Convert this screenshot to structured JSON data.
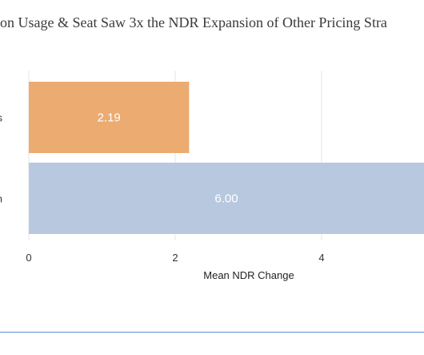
{
  "chart_data": {
    "type": "bar",
    "orientation": "horizontal",
    "title": "on Usage & Seat Saw 3x the NDR Expansion of Other Pricing Stra",
    "categories": [
      "s",
      "n"
    ],
    "values": [
      2.19,
      6.0
    ],
    "value_labels": [
      "2.19",
      "6.00"
    ],
    "xlabel": "Mean NDR Change",
    "ylabel": "",
    "xlim": [
      0,
      5.4
    ],
    "xticks": [
      0,
      2,
      4
    ],
    "grid": true,
    "colors": [
      "#ECAB70",
      "#B8C9DF"
    ]
  },
  "colors": {
    "grid": "#e5e5e5",
    "bottom_rule": "#5b8fd6"
  }
}
